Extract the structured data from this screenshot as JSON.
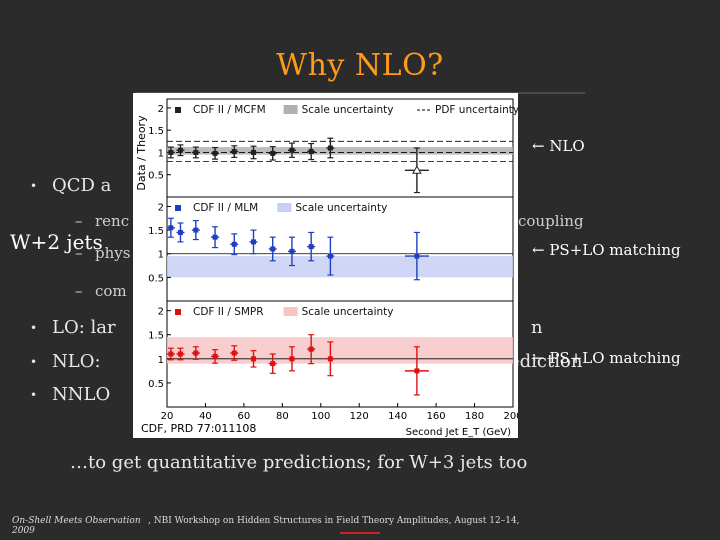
{
  "slide": {
    "title": "Why NLO?",
    "bullets": [
      {
        "text": "QCD a"
      },
      {
        "text": "LO: lar",
        "tail": "n"
      },
      {
        "text": "NLO: ",
        "tail": "ediction"
      },
      {
        "text": "NNLO"
      }
    ],
    "subs": [
      {
        "text": "renc",
        "tail": "coupling"
      },
      {
        "text": "phys"
      },
      {
        "text": "com"
      }
    ],
    "annotations": {
      "nlo": "← NLO",
      "ps_lo_1": "← PS+LO matching",
      "ps_lo_2": "← PS+LO matching",
      "w2jets": "W+2 jets"
    },
    "bottom_note": "…to get quantitative predictions; for W+3 jets too",
    "footer": {
      "left_line1": "On-Shell Meets Observation",
      "left_line2": "2009",
      "middle": ", NBI Workshop on Hidden Structures in Field Theory Amplitudes, August 12–14,"
    },
    "colors": {
      "title": "#ff9a1a",
      "background": "#2b2b2b",
      "panel1": "#222222",
      "panel2": "#1f3fbf",
      "panel3": "#dd1111"
    }
  },
  "chart_data": {
    "type": "scatter",
    "title": "",
    "xlabel": "Second Jet E_T (GeV)",
    "ylabel": "Data / Theory",
    "xlim": [
      20,
      200
    ],
    "ylim": [
      0,
      2.2
    ],
    "xticks": [
      "20",
      "40",
      "60",
      "80",
      "100",
      "120",
      "140",
      "160",
      "180",
      "200"
    ],
    "citation": "CDF, PRD 77:011108",
    "panels": [
      {
        "legend": [
          "CDF II / MCFM",
          "Scale uncertainty",
          "PDF uncertainty"
        ],
        "yticks": [
          "0.5",
          "1",
          "1.5",
          "2"
        ],
        "color": "#222222",
        "band": [
          0.95,
          1.12
        ],
        "x": [
          22,
          27,
          35,
          45,
          55,
          65,
          75,
          85,
          95,
          105,
          150
        ],
        "y": [
          1.0,
          1.05,
          1.0,
          0.98,
          1.02,
          1.0,
          0.98,
          1.05,
          1.02,
          1.1,
          0.6
        ],
        "err": [
          0.12,
          0.12,
          0.12,
          0.13,
          0.13,
          0.14,
          0.15,
          0.16,
          0.18,
          0.22,
          0.5
        ],
        "open_last": true
      },
      {
        "legend": [
          "CDF II / MLM",
          "Scale uncertainty"
        ],
        "yticks": [
          "0.5",
          "1",
          "1.5",
          "2"
        ],
        "color": "#1f3fbf",
        "band": [
          0.5,
          0.95
        ],
        "x": [
          22,
          27,
          35,
          45,
          55,
          65,
          75,
          85,
          95,
          105,
          150
        ],
        "y": [
          1.55,
          1.45,
          1.5,
          1.35,
          1.2,
          1.25,
          1.1,
          1.05,
          1.15,
          0.95,
          0.95
        ],
        "err": [
          0.2,
          0.2,
          0.2,
          0.22,
          0.22,
          0.25,
          0.25,
          0.3,
          0.3,
          0.4,
          0.5
        ]
      },
      {
        "legend": [
          "CDF II / SMPR",
          "Scale uncertainty"
        ],
        "yticks": [
          "0.5",
          "1",
          "1.5",
          "2"
        ],
        "color": "#dd1111",
        "band": [
          0.9,
          1.45
        ],
        "x": [
          22,
          27,
          35,
          45,
          55,
          65,
          75,
          85,
          95,
          105,
          150
        ],
        "y": [
          1.1,
          1.1,
          1.12,
          1.05,
          1.12,
          1.0,
          0.9,
          1.0,
          1.2,
          1.0,
          0.75
        ],
        "err": [
          0.12,
          0.12,
          0.13,
          0.14,
          0.15,
          0.17,
          0.2,
          0.25,
          0.3,
          0.35,
          0.5
        ]
      }
    ]
  }
}
